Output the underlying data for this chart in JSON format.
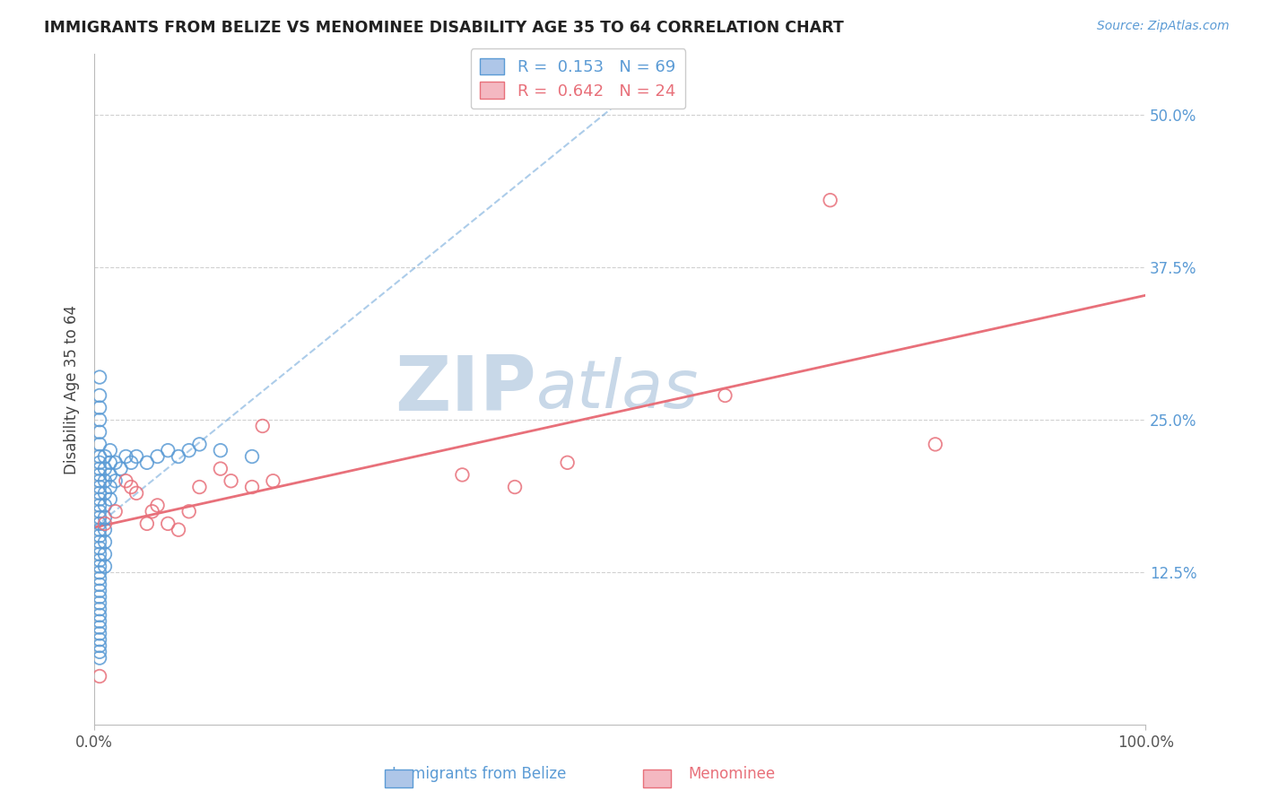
{
  "title": "IMMIGRANTS FROM BELIZE VS MENOMINEE DISABILITY AGE 35 TO 64 CORRELATION CHART",
  "source_text": "Source: ZipAtlas.com",
  "ylabel": "Disability Age 35 to 64",
  "xlim": [
    0.0,
    1.0
  ],
  "ylim": [
    0.0,
    0.55
  ],
  "xtick_positions": [
    0.0,
    1.0
  ],
  "xtick_labels": [
    "0.0%",
    "100.0%"
  ],
  "ytick_positions": [
    0.125,
    0.25,
    0.375,
    0.5
  ],
  "ytick_labels": [
    "12.5%",
    "25.0%",
    "37.5%",
    "50.0%"
  ],
  "r_blue": 0.153,
  "n_blue": 69,
  "r_pink": 0.642,
  "n_pink": 24,
  "blue_color": "#5b9bd5",
  "pink_color": "#e8707a",
  "blue_fill": "#aec6e8",
  "pink_fill": "#f4b8c1",
  "background_color": "#ffffff",
  "grid_color": "#cccccc",
  "watermark_zip_color": "#c8d8e8",
  "watermark_atlas_color": "#c8d8e8",
  "blue_scatter_x": [
    0.005,
    0.005,
    0.005,
    0.005,
    0.005,
    0.005,
    0.005,
    0.005,
    0.005,
    0.005,
    0.005,
    0.005,
    0.005,
    0.005,
    0.005,
    0.005,
    0.005,
    0.005,
    0.005,
    0.005,
    0.005,
    0.005,
    0.005,
    0.005,
    0.005,
    0.005,
    0.005,
    0.005,
    0.005,
    0.005,
    0.005,
    0.005,
    0.005,
    0.005,
    0.005,
    0.005,
    0.005,
    0.005,
    0.005,
    0.005,
    0.01,
    0.01,
    0.01,
    0.01,
    0.01,
    0.01,
    0.01,
    0.01,
    0.01,
    0.01,
    0.015,
    0.015,
    0.015,
    0.015,
    0.015,
    0.02,
    0.02,
    0.025,
    0.03,
    0.035,
    0.04,
    0.05,
    0.06,
    0.07,
    0.08,
    0.09,
    0.1,
    0.12,
    0.15
  ],
  "blue_scatter_y": [
    0.285,
    0.27,
    0.26,
    0.25,
    0.24,
    0.23,
    0.22,
    0.215,
    0.21,
    0.205,
    0.2,
    0.195,
    0.19,
    0.185,
    0.18,
    0.175,
    0.17,
    0.165,
    0.16,
    0.155,
    0.15,
    0.145,
    0.14,
    0.135,
    0.13,
    0.125,
    0.12,
    0.115,
    0.11,
    0.105,
    0.1,
    0.095,
    0.09,
    0.085,
    0.08,
    0.075,
    0.07,
    0.065,
    0.06,
    0.055,
    0.22,
    0.21,
    0.2,
    0.19,
    0.18,
    0.17,
    0.16,
    0.15,
    0.14,
    0.13,
    0.225,
    0.215,
    0.205,
    0.195,
    0.185,
    0.215,
    0.2,
    0.21,
    0.22,
    0.215,
    0.22,
    0.215,
    0.22,
    0.225,
    0.22,
    0.225,
    0.23,
    0.225,
    0.22
  ],
  "pink_scatter_x": [
    0.005,
    0.01,
    0.02,
    0.03,
    0.035,
    0.04,
    0.05,
    0.055,
    0.06,
    0.07,
    0.08,
    0.09,
    0.1,
    0.12,
    0.13,
    0.15,
    0.16,
    0.17,
    0.35,
    0.4,
    0.45,
    0.6,
    0.7,
    0.8
  ],
  "pink_scatter_y": [
    0.04,
    0.165,
    0.175,
    0.2,
    0.195,
    0.19,
    0.165,
    0.175,
    0.18,
    0.165,
    0.16,
    0.175,
    0.195,
    0.21,
    0.2,
    0.195,
    0.245,
    0.2,
    0.205,
    0.195,
    0.215,
    0.27,
    0.43,
    0.23
  ],
  "legend_bottom": [
    {
      "label": "Immigrants from Belize",
      "fill": "#aec6e8",
      "edge": "#5b9bd5"
    },
    {
      "label": "Menominee",
      "fill": "#f4b8c1",
      "edge": "#e8707a"
    }
  ]
}
